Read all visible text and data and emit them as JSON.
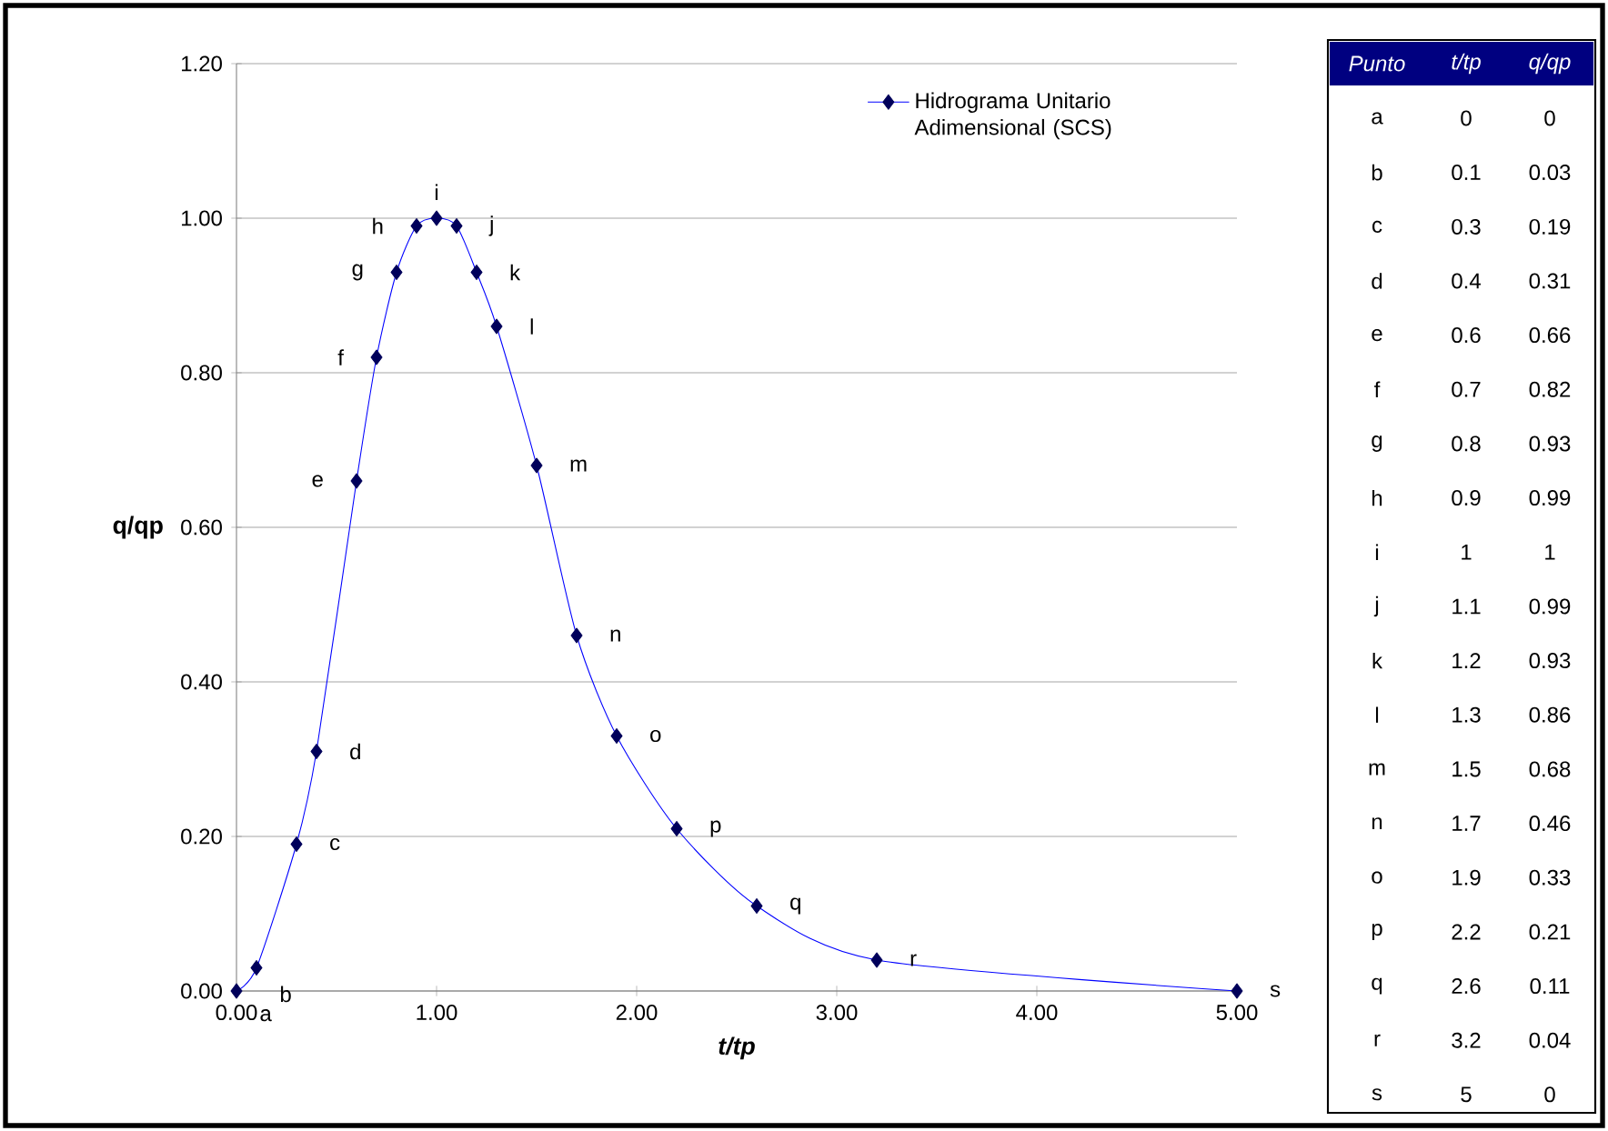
{
  "chart_data": [
    {
      "type": "line",
      "xlabel": "t/tp",
      "ylabel": "q/qp",
      "x": [
        0,
        0.1,
        0.3,
        0.4,
        0.6,
        0.7,
        0.8,
        0.9,
        1,
        1.1,
        1.2,
        1.3,
        1.5,
        1.7,
        1.9,
        2.2,
        2.6,
        3.2,
        5
      ],
      "series": [
        {
          "name": "Hidrograma Unitario Adimensional (SCS)",
          "color": "#0000ff",
          "values": [
            0,
            0.03,
            0.19,
            0.31,
            0.66,
            0.82,
            0.93,
            0.99,
            1,
            0.99,
            0.93,
            0.86,
            0.68,
            0.46,
            0.33,
            0.21,
            0.11,
            0.04,
            0
          ]
        }
      ],
      "xlim": [
        0,
        5
      ],
      "ylim": [
        0,
        1.2
      ],
      "xticks": [
        {
          "value": 0,
          "label": "0.00"
        },
        {
          "value": 1,
          "label": "1.00"
        },
        {
          "value": 2,
          "label": "2.00"
        },
        {
          "value": 3,
          "label": "3.00"
        },
        {
          "value": 4,
          "label": "4.00"
        },
        {
          "value": 5,
          "label": "5.00"
        }
      ],
      "yticks": [
        {
          "value": 0,
          "label": "0.00"
        },
        {
          "value": 0.2,
          "label": "0.20"
        },
        {
          "value": 0.4,
          "label": "0.40"
        },
        {
          "value": 0.6,
          "label": "0.60"
        },
        {
          "value": 0.8,
          "label": "0.80"
        },
        {
          "value": 1,
          "label": "1.00"
        },
        {
          "value": 1.2,
          "label": "1.20"
        }
      ],
      "grid": "y",
      "legend": "top right",
      "marker": "diamond",
      "line_style": "solid",
      "annotations": [
        {
          "text": "a",
          "x": 0,
          "y": 0
        },
        {
          "text": "b",
          "x": 0.1,
          "y": 0.03
        },
        {
          "text": "c",
          "x": 0.3,
          "y": 0.19
        },
        {
          "text": "d",
          "x": 0.4,
          "y": 0.31
        },
        {
          "text": "e",
          "x": 0.6,
          "y": 0.66
        },
        {
          "text": "f",
          "x": 0.7,
          "y": 0.82
        },
        {
          "text": "g",
          "x": 0.8,
          "y": 0.93
        },
        {
          "text": "h",
          "x": 0.9,
          "y": 0.99
        },
        {
          "text": "i",
          "x": 1,
          "y": 1
        },
        {
          "text": "j",
          "x": 1.1,
          "y": 0.99
        },
        {
          "text": "k",
          "x": 1.2,
          "y": 0.93
        },
        {
          "text": "l",
          "x": 1.3,
          "y": 0.86
        },
        {
          "text": "m",
          "x": 1.5,
          "y": 0.68
        },
        {
          "text": "n",
          "x": 1.7,
          "y": 0.46
        },
        {
          "text": "o",
          "x": 1.9,
          "y": 0.33
        },
        {
          "text": "p",
          "x": 2.2,
          "y": 0.21
        },
        {
          "text": "q",
          "x": 2.6,
          "y": 0.11
        },
        {
          "text": "r",
          "x": 3.2,
          "y": 0.04
        },
        {
          "text": "s",
          "x": 5,
          "y": 0
        }
      ]
    },
    {
      "type": "other",
      "xlabel": "Punto",
      "categories": [
        "a",
        "b",
        "c",
        "d",
        "e",
        "f",
        "g",
        "h",
        "i",
        "j",
        "k",
        "l",
        "m",
        "n",
        "o",
        "p",
        "q",
        "r",
        "s"
      ],
      "series": [
        {
          "name": "t/tp",
          "values": [
            0,
            0.1,
            0.3,
            0.4,
            0.6,
            0.7,
            0.8,
            0.9,
            1,
            1.1,
            1.2,
            1.3,
            1.5,
            1.7,
            1.9,
            2.2,
            2.6,
            3.2,
            5
          ],
          "value_labels": [
            "0",
            "0.1",
            "0.3",
            "0.4",
            "0.6",
            "0.7",
            "0.8",
            "0.9",
            "1",
            "1.1",
            "1.2",
            "1.3",
            "1.5",
            "1.7",
            "1.9",
            "2.2",
            "2.6",
            "3.2",
            "5"
          ]
        },
        {
          "name": "q/qp",
          "values": [
            0,
            0.03,
            0.19,
            0.31,
            0.66,
            0.82,
            0.93,
            0.99,
            1,
            0.99,
            0.93,
            0.86,
            0.68,
            0.46,
            0.33,
            0.21,
            0.11,
            0.04,
            0
          ],
          "value_labels": [
            "0",
            "0.03",
            "0.19",
            "0.31",
            "0.66",
            "0.82",
            "0.93",
            "0.99",
            "1",
            "0.99",
            "0.93",
            "0.86",
            "0.68",
            "0.46",
            "0.33",
            "0.21",
            "0.11",
            "0.04",
            "0"
          ]
        }
      ]
    }
  ]
}
